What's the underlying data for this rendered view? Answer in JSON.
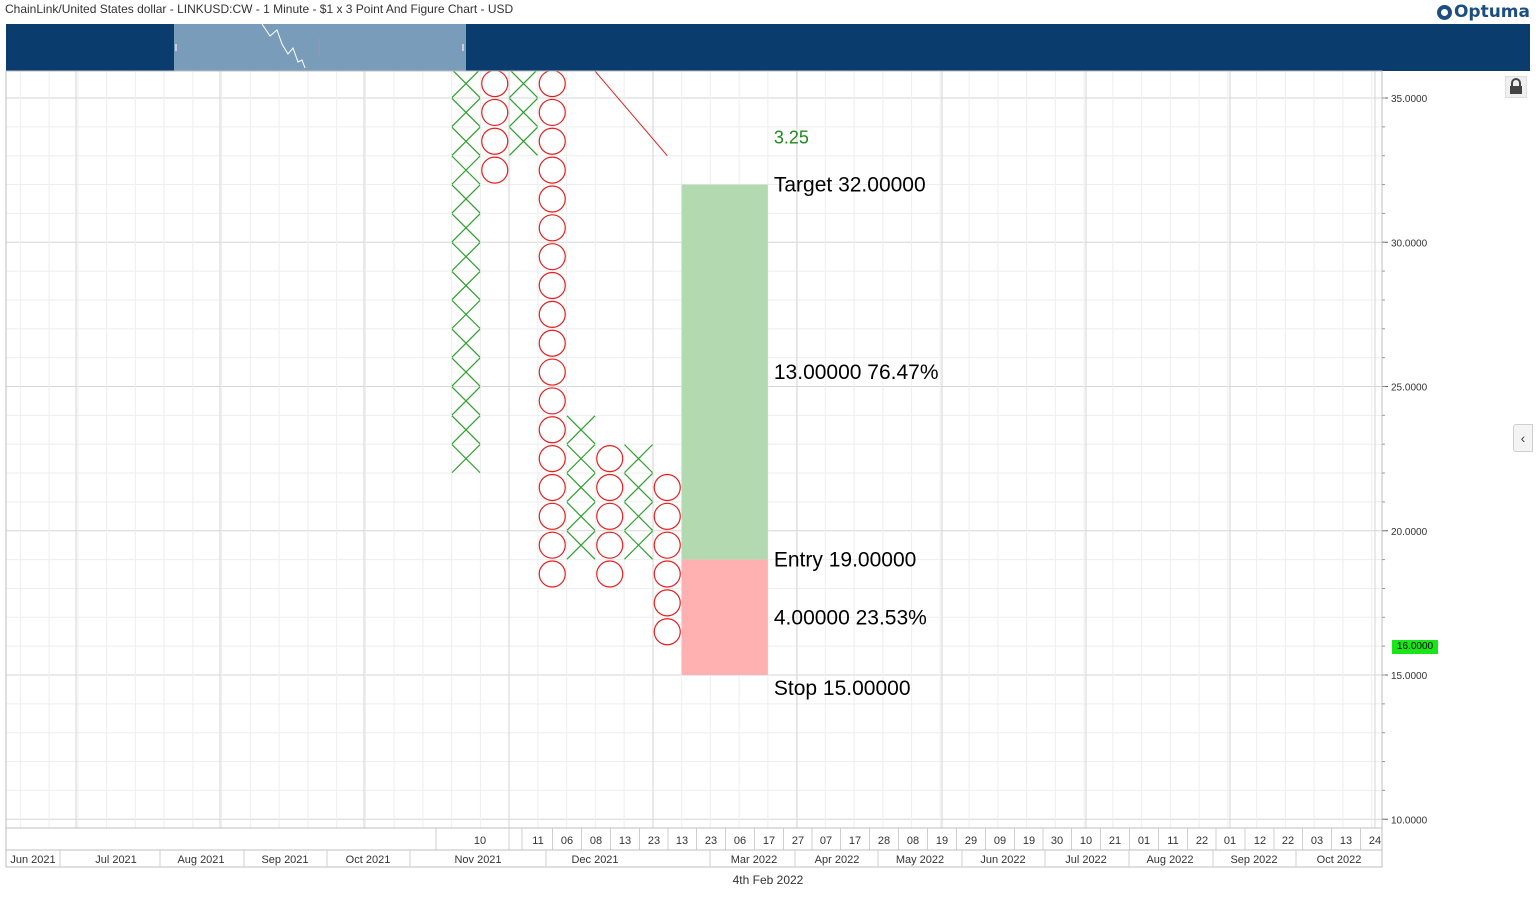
{
  "header": {
    "title": "ChainLink/United States dollar - LINKUSD:CW - 1 Minute - $1 x 3 Point And Figure Chart - USD",
    "logo": "Optuma"
  },
  "price_badge": "16.0000",
  "footer_date": "4th Feb 2022",
  "colors": {
    "x_mark": "#2ea02e",
    "o_mark": "#e32020",
    "target_zone": "#b2d9b0",
    "stop_zone": "#ffb0b0",
    "nav": "#0a3d6e",
    "price_badge": "#19e619"
  },
  "chart_data": {
    "type": "point-and-figure",
    "box_size": 1,
    "reversal": 3,
    "ylim": [
      9.5,
      35.8
    ],
    "y_ticks": [
      "35.0000",
      "30.0000",
      "25.0000",
      "20.0000",
      "15.0000",
      "10.0000"
    ],
    "y_tick_values": [
      35,
      30,
      25,
      20,
      15,
      10
    ],
    "current_price": 16,
    "columns": [
      {
        "type": "X",
        "from": 22.5,
        "to": 35.5
      },
      {
        "type": "O",
        "from": 35.5,
        "to": 32.5
      },
      {
        "type": "X",
        "from": 33.5,
        "to": 35.5
      },
      {
        "type": "O",
        "from": 35.5,
        "to": 18.5
      },
      {
        "type": "X",
        "from": 19.5,
        "to": 23.5
      },
      {
        "type": "O",
        "from": 22.5,
        "to": 18.5
      },
      {
        "type": "X",
        "from": 19.5,
        "to": 22.5
      },
      {
        "type": "O",
        "from": 21.5,
        "to": 16.5
      }
    ],
    "trend_line": {
      "from_column": 4,
      "from_value": 36.5,
      "to_column": 7,
      "to_value": 33
    },
    "trade": {
      "target_label": "Target",
      "target": "32.00000",
      "entry_label": "Entry",
      "entry": "19.00000",
      "stop_label": "Stop",
      "stop": "15.00000",
      "reward": "13.00000",
      "reward_pct": "76.47%",
      "risk": "4.00000",
      "risk_pct": "23.53%",
      "ratio": "3.25",
      "target_value": 32,
      "entry_value": 19,
      "stop_value": 15
    },
    "x_axis_top": [
      "10",
      "11",
      "06",
      "08",
      "13",
      "23",
      "13",
      "23",
      "06",
      "17",
      "27",
      "07",
      "17",
      "28",
      "08",
      "19",
      "29",
      "09",
      "19",
      "30",
      "10",
      "21",
      "01",
      "11",
      "22",
      "01",
      "12",
      "22",
      "03",
      "13",
      "24"
    ],
    "x_axis_bottom": [
      "Jun 2021",
      "Jul 2021",
      "Aug 2021",
      "Sep 2021",
      "Oct 2021",
      "Nov 2021",
      "Dec 2021",
      "Mar 2022",
      "Apr 2022",
      "May 2022",
      "Jun 2022",
      "Jul 2022",
      "Aug 2022",
      "Sep 2022",
      "Oct 2022"
    ]
  }
}
